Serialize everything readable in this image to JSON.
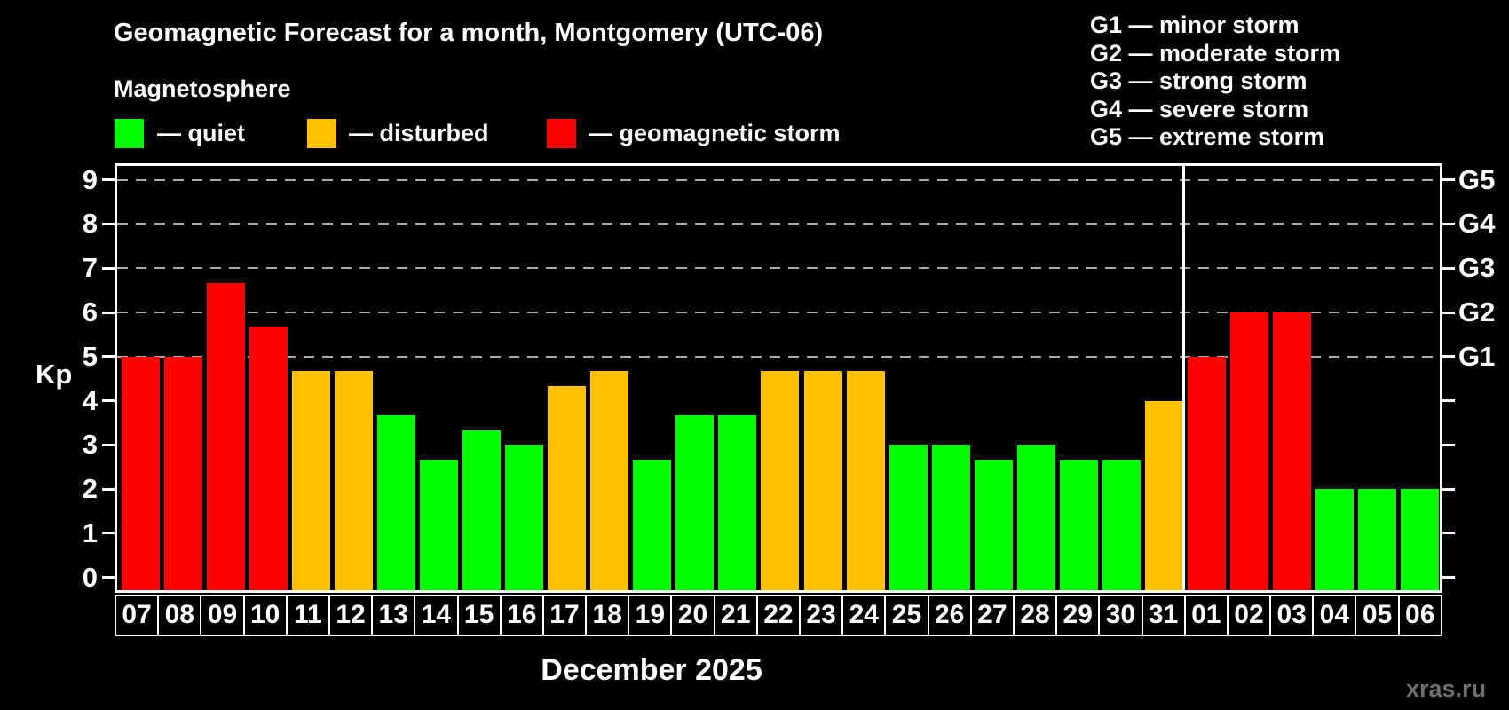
{
  "header": {
    "title": "Geomagnetic Forecast for a month, Montgomery (UTC-06)",
    "subtitle": "Magnetosphere"
  },
  "legend": {
    "items": [
      {
        "key": "quiet",
        "label": "— quiet",
        "color": "#00ff00"
      },
      {
        "key": "disturbed",
        "label": "— disturbed",
        "color": "#ffc000"
      },
      {
        "key": "storm",
        "label": "— geomagnetic storm",
        "color": "#ff0000"
      }
    ]
  },
  "storm_scale": [
    "G1 — minor storm",
    "G2 — moderate storm",
    "G3 — strong storm",
    "G4 — severe storm",
    "G5 — extreme storm"
  ],
  "axes": {
    "y_label": "Kp",
    "y_ticks": [
      0,
      1,
      2,
      3,
      4,
      5,
      6,
      7,
      8,
      9
    ],
    "right_labels": [
      {
        "kp": 5,
        "label": "G1"
      },
      {
        "kp": 6,
        "label": "G2"
      },
      {
        "kp": 7,
        "label": "G3"
      },
      {
        "kp": 8,
        "label": "G4"
      },
      {
        "kp": 9,
        "label": "G5"
      }
    ]
  },
  "x_caption": "December 2025",
  "watermark": "xras.ru",
  "chart_data": {
    "type": "bar",
    "title": "Geomagnetic Forecast for a month, Montgomery (UTC-06)",
    "ylabel": "Kp",
    "ylim": [
      0,
      9
    ],
    "grid": "dashed horizontal at Kp 5-9",
    "gridlines_at": [
      5,
      6,
      7,
      8,
      9
    ],
    "legend_position": "top",
    "categories": [
      "07",
      "08",
      "09",
      "10",
      "11",
      "12",
      "13",
      "14",
      "15",
      "16",
      "17",
      "18",
      "19",
      "20",
      "21",
      "22",
      "23",
      "24",
      "25",
      "26",
      "27",
      "28",
      "29",
      "30",
      "31",
      "01",
      "02",
      "03",
      "04",
      "05",
      "06"
    ],
    "values": [
      5.0,
      5.0,
      6.67,
      5.67,
      4.67,
      4.67,
      3.67,
      2.67,
      3.33,
      3.0,
      4.33,
      4.67,
      2.67,
      3.67,
      3.67,
      4.67,
      4.67,
      4.67,
      3.0,
      3.0,
      2.67,
      3.0,
      2.67,
      2.67,
      4.0,
      5.0,
      6.0,
      6.0,
      2.0,
      2.0,
      2.0
    ],
    "statuses": [
      "storm",
      "storm",
      "storm",
      "storm",
      "disturbed",
      "disturbed",
      "quiet",
      "quiet",
      "quiet",
      "quiet",
      "disturbed",
      "disturbed",
      "quiet",
      "quiet",
      "quiet",
      "disturbed",
      "disturbed",
      "disturbed",
      "quiet",
      "quiet",
      "quiet",
      "quiet",
      "quiet",
      "quiet",
      "disturbed",
      "storm",
      "storm",
      "storm",
      "quiet",
      "quiet",
      "quiet"
    ],
    "status_colors": {
      "quiet": "#00ff00",
      "disturbed": "#ffc000",
      "storm": "#ff0000"
    },
    "month_separator_after_index": 24
  }
}
